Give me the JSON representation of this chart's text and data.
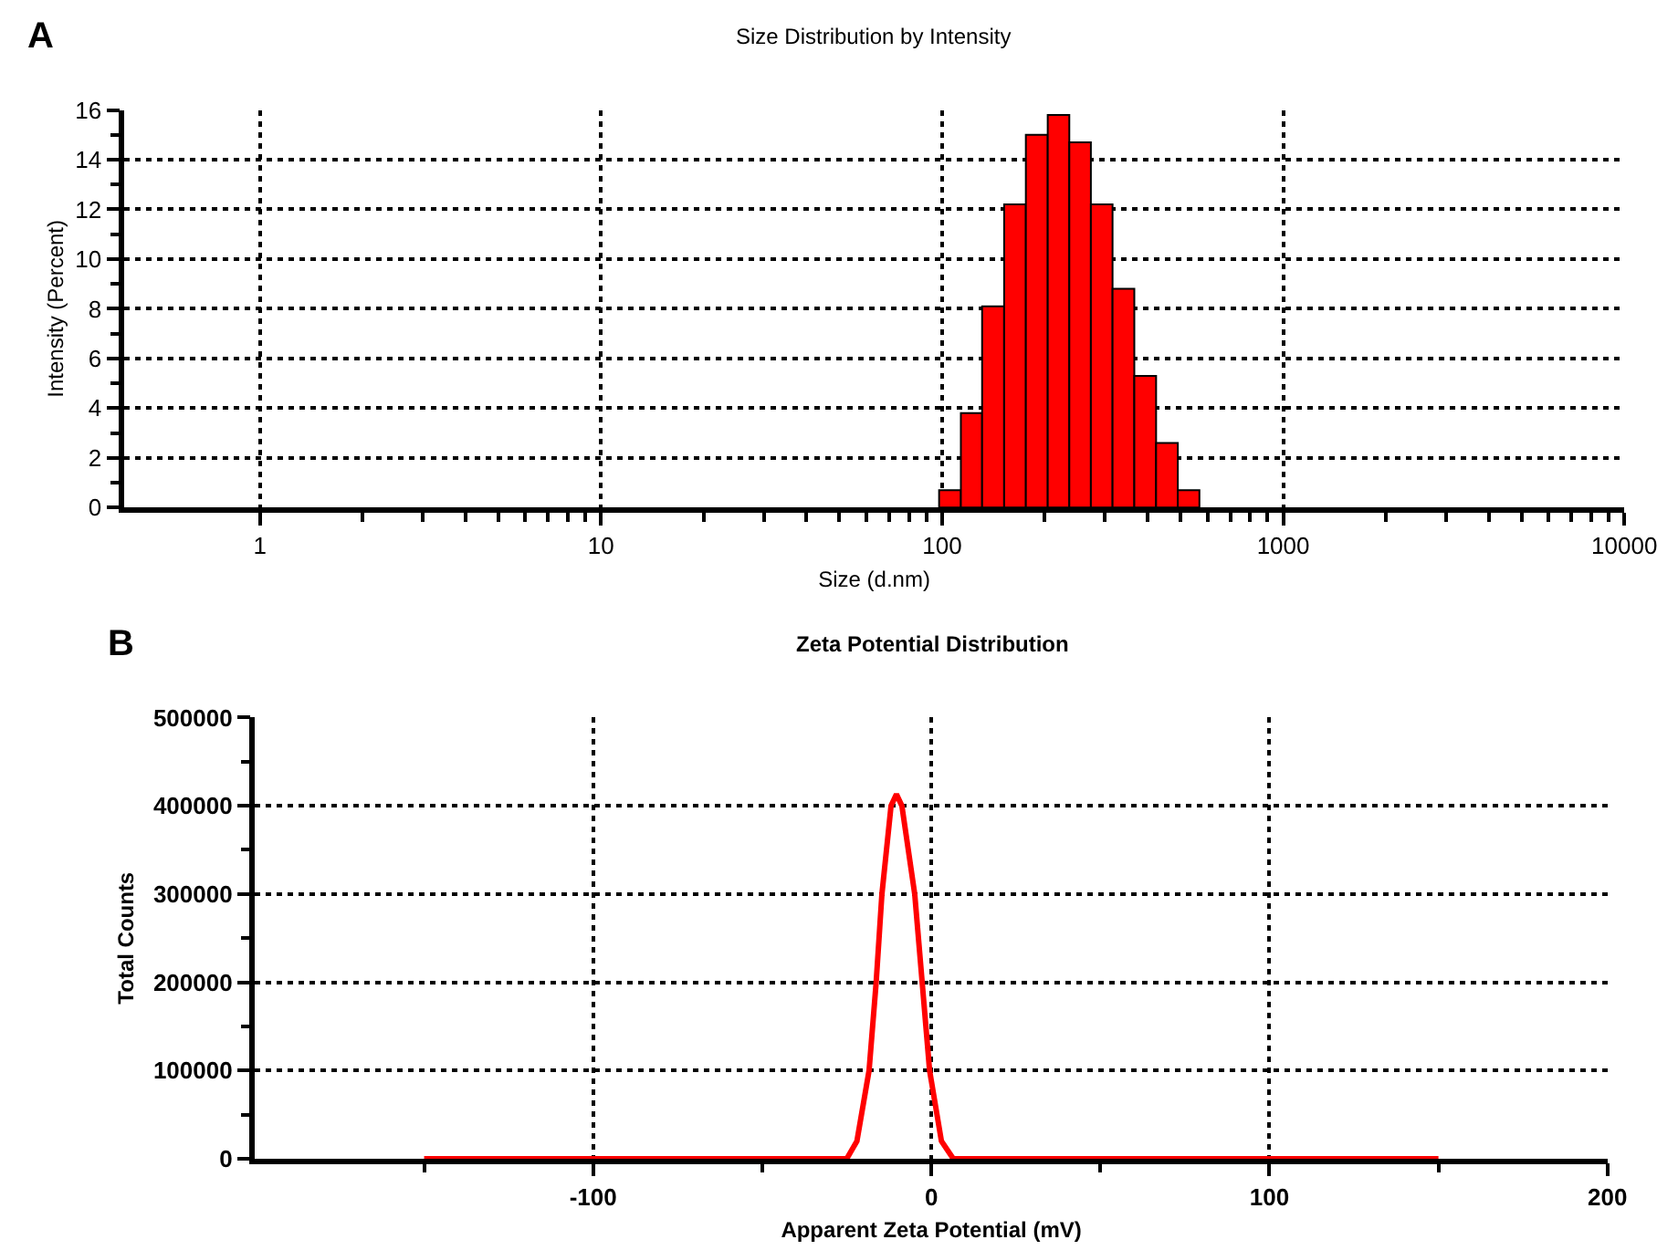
{
  "chart_data": [
    {
      "type": "histogram",
      "title": "Size Distribution by Intensity",
      "xlabel": "Size (d.nm)",
      "ylabel": "Intensity (Percent)",
      "annotations": [
        "A"
      ],
      "log": "x",
      "color": "#ff0000",
      "bins": [
        98,
        113.5,
        131,
        152,
        176,
        204,
        236,
        273,
        316,
        366,
        424,
        491,
        568
      ],
      "values": [
        0.7,
        3.8,
        8.1,
        12.2,
        15.0,
        15.8,
        14.7,
        12.2,
        8.8,
        5.3,
        2.6,
        0.7
      ],
      "xlim": [
        0.4,
        10000
      ],
      "xticks": [
        1,
        {
          "value": 2,
          "label": null
        },
        {
          "value": 3,
          "label": null
        },
        {
          "value": 4,
          "label": null
        },
        {
          "value": 5,
          "label": null
        },
        {
          "value": 6,
          "label": null
        },
        {
          "value": 7,
          "label": null
        },
        {
          "value": 8,
          "label": null
        },
        {
          "value": 9,
          "label": null
        },
        10,
        {
          "value": 20,
          "label": null
        },
        {
          "value": 30,
          "label": null
        },
        {
          "value": 40,
          "label": null
        },
        {
          "value": 50,
          "label": null
        },
        {
          "value": 60,
          "label": null
        },
        {
          "value": 70,
          "label": null
        },
        {
          "value": 80,
          "label": null
        },
        {
          "value": 90,
          "label": null
        },
        100,
        {
          "value": 200,
          "label": null
        },
        {
          "value": 300,
          "label": null
        },
        {
          "value": 400,
          "label": null
        },
        {
          "value": 500,
          "label": null
        },
        {
          "value": 600,
          "label": null
        },
        {
          "value": 700,
          "label": null
        },
        {
          "value": 800,
          "label": null
        },
        {
          "value": 900,
          "label": null
        },
        1000,
        {
          "value": 2000,
          "label": null
        },
        {
          "value": 3000,
          "label": null
        },
        {
          "value": 4000,
          "label": null
        },
        {
          "value": 5000,
          "label": null
        },
        {
          "value": 6000,
          "label": null
        },
        {
          "value": 7000,
          "label": null
        },
        {
          "value": 8000,
          "label": null
        },
        {
          "value": 9000,
          "label": null
        },
        10000
      ],
      "ylim": [
        0,
        16
      ],
      "yticks": [
        0,
        {
          "value": 1,
          "label": null
        },
        2,
        {
          "value": 3,
          "label": null
        },
        4,
        {
          "value": 5,
          "label": null
        },
        6,
        {
          "value": 7,
          "label": null
        },
        8,
        {
          "value": 9,
          "label": null
        },
        10,
        {
          "value": 11,
          "label": null
        },
        12,
        {
          "value": 13,
          "label": null
        },
        14,
        {
          "value": 15,
          "label": null
        },
        16
      ],
      "grid": true
    },
    {
      "type": "line",
      "title": "Zeta Potential Distribution",
      "xlabel": "Apparent Zeta Potential (mV)",
      "ylabel": "Total Counts",
      "annotations": [
        "B"
      ],
      "marker": "none",
      "line_style": "solid",
      "series": [
        {
          "color": "#ff0000",
          "x": [
            -150,
            -25,
            -22,
            -18.4,
            -16.3,
            -14.6,
            -11.9,
            -10.3,
            -8.7,
            -4.9,
            -2.7,
            -0.5,
            3,
            6.5,
            150
          ],
          "values": [
            0,
            0,
            20000,
            100000,
            200000,
            300000,
            400000,
            413000,
            400000,
            300000,
            200000,
            100000,
            20000,
            0,
            0
          ]
        }
      ],
      "xlim": [
        -200,
        200
      ],
      "xticks": [
        {
          "value": -150,
          "label": null
        },
        -100,
        {
          "value": -50,
          "label": null
        },
        0,
        {
          "value": 50,
          "label": null
        },
        100,
        {
          "value": 150,
          "label": null
        },
        200
      ],
      "ylim": [
        0,
        500000
      ],
      "yticks": [
        0,
        {
          "value": 50000,
          "label": null
        },
        100000,
        {
          "value": 150000,
          "label": null
        },
        200000,
        {
          "value": 250000,
          "label": null
        },
        300000,
        {
          "value": 350000,
          "label": null
        },
        400000,
        {
          "value": 450000,
          "label": null
        },
        500000
      ],
      "grid": true
    }
  ]
}
